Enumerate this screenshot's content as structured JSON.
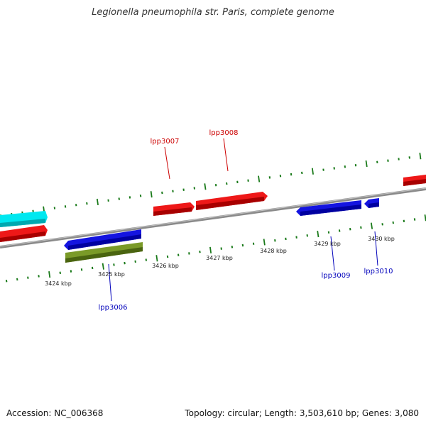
{
  "title": "Legionella pneumophila str. Paris, complete genome",
  "footer": {
    "accession": "Accession: NC_006368",
    "summary": "Topology: circular; Length: 3,503,610 bp; Genes: 3,080"
  },
  "colors": {
    "forward_gene": "#e01010",
    "reverse_gene": "#1010d8",
    "cyan_feature": "#00e0e8",
    "olive_feature": "#6a8a20",
    "backbone": "#8a8a8a",
    "tick": "#1a7a1a",
    "label_forward": "#cc0000",
    "label_reverse": "#0000bb"
  },
  "axis_labels": [
    "3424 kbp",
    "3425 kbp",
    "3426 kbp",
    "3427 kbp",
    "3428 kbp",
    "3429 kbp",
    "3430 kbp"
  ],
  "gene_labels": [
    {
      "text": "lpp3007",
      "strand": "forward"
    },
    {
      "text": "lpp3008",
      "strand": "forward"
    },
    {
      "text": "lpp3006",
      "strand": "reverse"
    },
    {
      "text": "lpp3009",
      "strand": "reverse"
    },
    {
      "text": "lpp3010",
      "strand": "reverse"
    }
  ],
  "features": [
    {
      "name": "cyan-feature",
      "color_key": "cyan_feature"
    },
    {
      "name": "forward-gene-left",
      "color_key": "forward_gene"
    },
    {
      "name": "forward-gene-lpp3007",
      "color_key": "forward_gene"
    },
    {
      "name": "forward-gene-lpp3008",
      "color_key": "forward_gene"
    },
    {
      "name": "forward-gene-right",
      "color_key": "forward_gene"
    },
    {
      "name": "reverse-gene-lpp3006",
      "color_key": "reverse_gene"
    },
    {
      "name": "olive-feature",
      "color_key": "olive_feature"
    },
    {
      "name": "reverse-gene-lpp3009",
      "color_key": "reverse_gene"
    },
    {
      "name": "reverse-gene-lpp3010",
      "color_key": "reverse_gene"
    }
  ]
}
